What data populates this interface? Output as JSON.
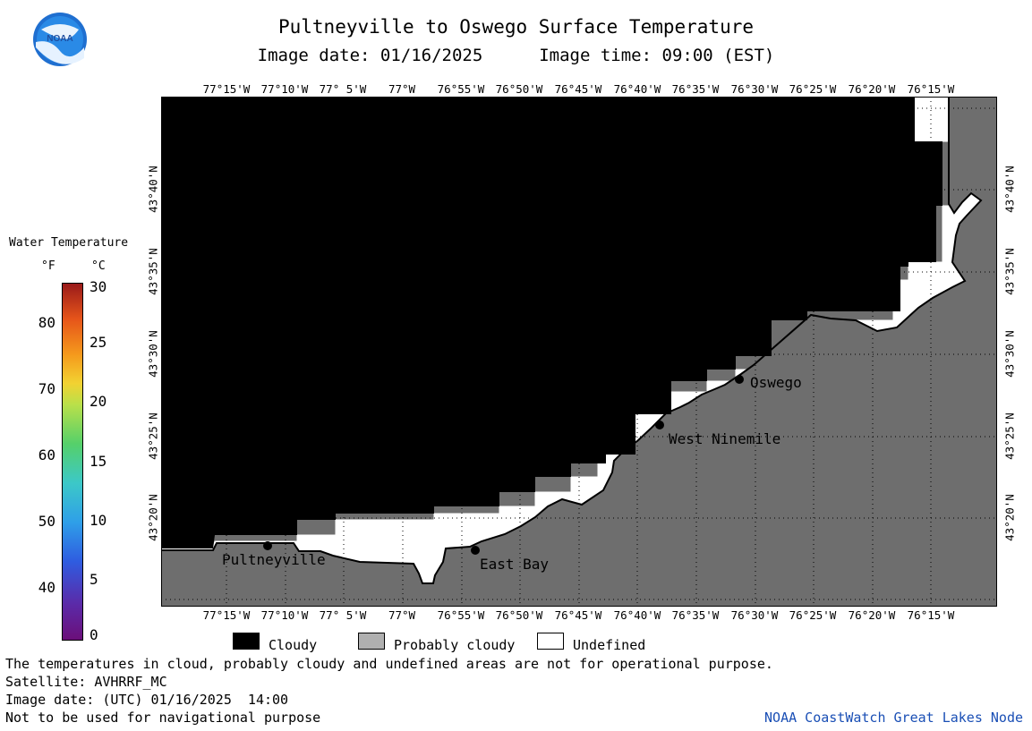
{
  "title": "Pultneyville to Oswego Surface Temperature",
  "image_date_label": "Image date: 01/16/2025",
  "image_time_label": "Image time: 09:00 (EST)",
  "lon_labels": [
    "77°15'W",
    "77°10'W",
    "77° 5'W",
    "77°W",
    "76°55'W",
    "76°50'W",
    "76°45'W",
    "76°40'W",
    "76°35'W",
    "76°30'W",
    "76°25'W",
    "76°20'W",
    "76°15'W"
  ],
  "lat_labels": [
    "43°40'N",
    "43°35'N",
    "43°30'N",
    "43°25'N",
    "43°20'N"
  ],
  "places": [
    {
      "name": "Pultneyville"
    },
    {
      "name": "East Bay"
    },
    {
      "name": "West Ninemile"
    },
    {
      "name": "Oswego"
    }
  ],
  "legend": {
    "title": "Water Temperature",
    "unit_f": "°F",
    "unit_c": "°C",
    "f_ticks": [
      "80",
      "70",
      "60",
      "50",
      "40"
    ],
    "c_ticks": [
      "30",
      "25",
      "20",
      "15",
      "10",
      "5",
      "0"
    ]
  },
  "key": {
    "cloudy": "Cloudy",
    "probably_cloudy": "Probably cloudy",
    "undefined": "Undefined"
  },
  "footer": {
    "line1": "The temperatures in cloud, probably cloudy and undefined areas are not for operational purpose.",
    "line2": "Satellite: AVHRRF_MC",
    "line3": "Image date: (UTC) 01/16/2025  14:00",
    "line4": "Not to be used for navigational purpose",
    "credit": "NOAA CoastWatch Great Lakes Node"
  },
  "colors": {
    "cloudy": "#000000",
    "probably_cloudy": "#808080",
    "undefined": "#ffffff",
    "land": "#6e6e6e",
    "credit": "#1a4fb5"
  },
  "icons": [
    "noaa-logo-icon",
    "city-marker-icon"
  ]
}
